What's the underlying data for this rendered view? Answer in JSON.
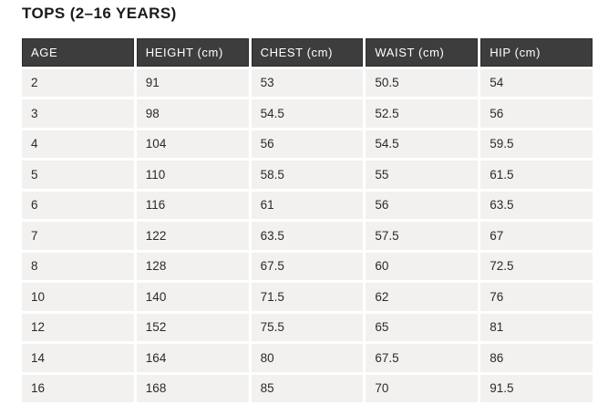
{
  "page": {
    "title": "TOPS (2–16 YEARS)"
  },
  "colors": {
    "header_bg": "#3d3d3d",
    "header_text": "#ffffff",
    "cell_bg": "#f2f1ef",
    "cell_text": "#2a2a2a",
    "page_bg": "#ffffff"
  },
  "chart_data": {
    "type": "table",
    "title": "TOPS (2–16 YEARS)",
    "columns": [
      "AGE",
      "HEIGHT (cm)",
      "CHEST (cm)",
      "WAIST (cm)",
      "HIP (cm)"
    ],
    "rows": [
      [
        2,
        91,
        53,
        50.5,
        54
      ],
      [
        3,
        98,
        54.5,
        52.5,
        56
      ],
      [
        4,
        104,
        56,
        54.5,
        59.5
      ],
      [
        5,
        110,
        58.5,
        55,
        61.5
      ],
      [
        6,
        116,
        61,
        56,
        63.5
      ],
      [
        7,
        122,
        63.5,
        57.5,
        67
      ],
      [
        8,
        128,
        67.5,
        60,
        72.5
      ],
      [
        10,
        140,
        71.5,
        62,
        76
      ],
      [
        12,
        152,
        75.5,
        65,
        81
      ],
      [
        14,
        164,
        80,
        67.5,
        86
      ],
      [
        16,
        168,
        85,
        70,
        91.5
      ]
    ]
  }
}
